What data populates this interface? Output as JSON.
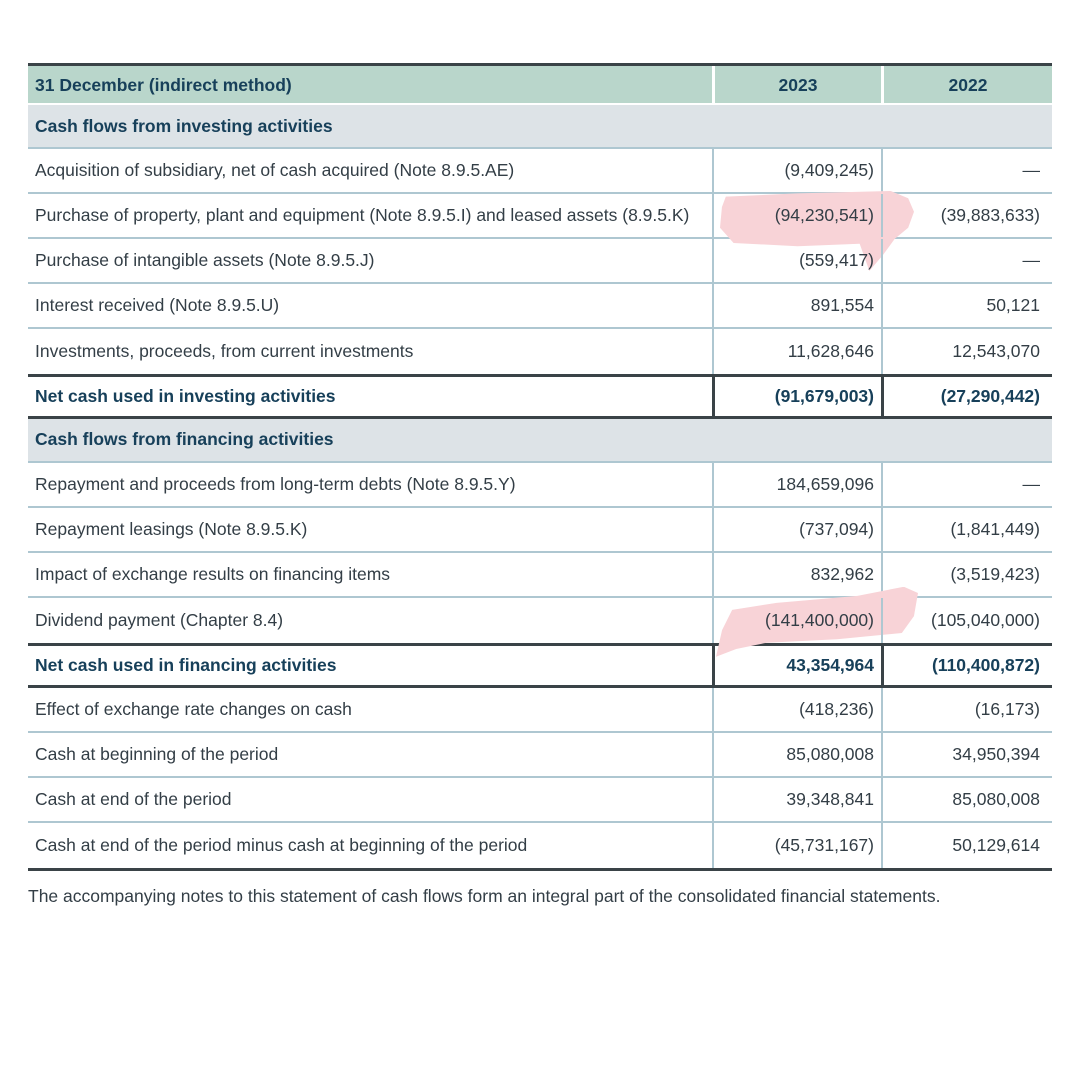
{
  "page": {
    "footer_note": "The accompanying notes to this statement of cash flows form an integral part of the consolidated financial statements."
  },
  "colors": {
    "header_bg": "#b9d6cb",
    "section_bg": "#dde3e7",
    "heading_text": "#17405a",
    "body_text": "#333e46",
    "row_divider": "#aec7d1",
    "dark_border": "#3a4347",
    "highlight_pink": "#f8d3d7"
  },
  "table": {
    "columns": [
      "31 December (indirect method)",
      "2023",
      "2022"
    ],
    "rows": [
      {
        "type": "section",
        "label": "Cash flows from investing activities"
      },
      {
        "type": "data",
        "label": "Acquisition of subsidiary, net of cash acquired (Note 8.9.5.AE)",
        "y2023": "(9,409,245)",
        "y2022": "—"
      },
      {
        "type": "data",
        "label": "Purchase of property, plant and equipment (Note 8.9.5.I) and leased assets (8.9.5.K)",
        "y2023": "(94,230,541)",
        "y2022": "(39,883,633)",
        "highlight": "hl-1"
      },
      {
        "type": "data",
        "label": "Purchase of intangible assets (Note 8.9.5.J)",
        "y2023": "(559,417)",
        "y2022": "—"
      },
      {
        "type": "data",
        "label": "Interest received (Note 8.9.5.U)",
        "y2023": "891,554",
        "y2022": "50,121"
      },
      {
        "type": "data",
        "label": "Investments, proceeds, from current investments",
        "y2023": "11,628,646",
        "y2022": "12,543,070"
      },
      {
        "type": "total",
        "label": "Net cash used in investing activities",
        "y2023": "(91,679,003)",
        "y2022": "(27,290,442)"
      },
      {
        "type": "section",
        "label": "Cash flows from financing activities"
      },
      {
        "type": "data",
        "label": "Repayment and proceeds from long-term debts (Note 8.9.5.Y)",
        "y2023": "184,659,096",
        "y2022": "—"
      },
      {
        "type": "data",
        "label": "Repayment leasings (Note 8.9.5.K)",
        "y2023": "(737,094)",
        "y2022": "(1,841,449)"
      },
      {
        "type": "data",
        "label": "Impact of exchange results on financing items",
        "y2023": "832,962",
        "y2022": "(3,519,423)"
      },
      {
        "type": "data",
        "label": "Dividend payment (Chapter 8.4)",
        "y2023": "(141,400,000)",
        "y2022": "(105,040,000)",
        "highlight": "hl-2"
      },
      {
        "type": "total",
        "label": "Net cash used in financing activities",
        "y2023": "43,354,964",
        "y2022": "(110,400,872)"
      },
      {
        "type": "data",
        "label": "Effect of exchange rate changes on cash",
        "y2023": "(418,236)",
        "y2022": "(16,173)"
      },
      {
        "type": "data",
        "label": "Cash at beginning of the period",
        "y2023": "85,080,008",
        "y2022": "34,950,394"
      },
      {
        "type": "data",
        "label": "Cash at end of the period",
        "y2023": "39,348,841",
        "y2022": "85,080,008"
      },
      {
        "type": "data",
        "label": "Cash at end of the period minus cash at beginning of the period",
        "y2023": "(45,731,167)",
        "y2022": "50,129,614"
      }
    ]
  }
}
